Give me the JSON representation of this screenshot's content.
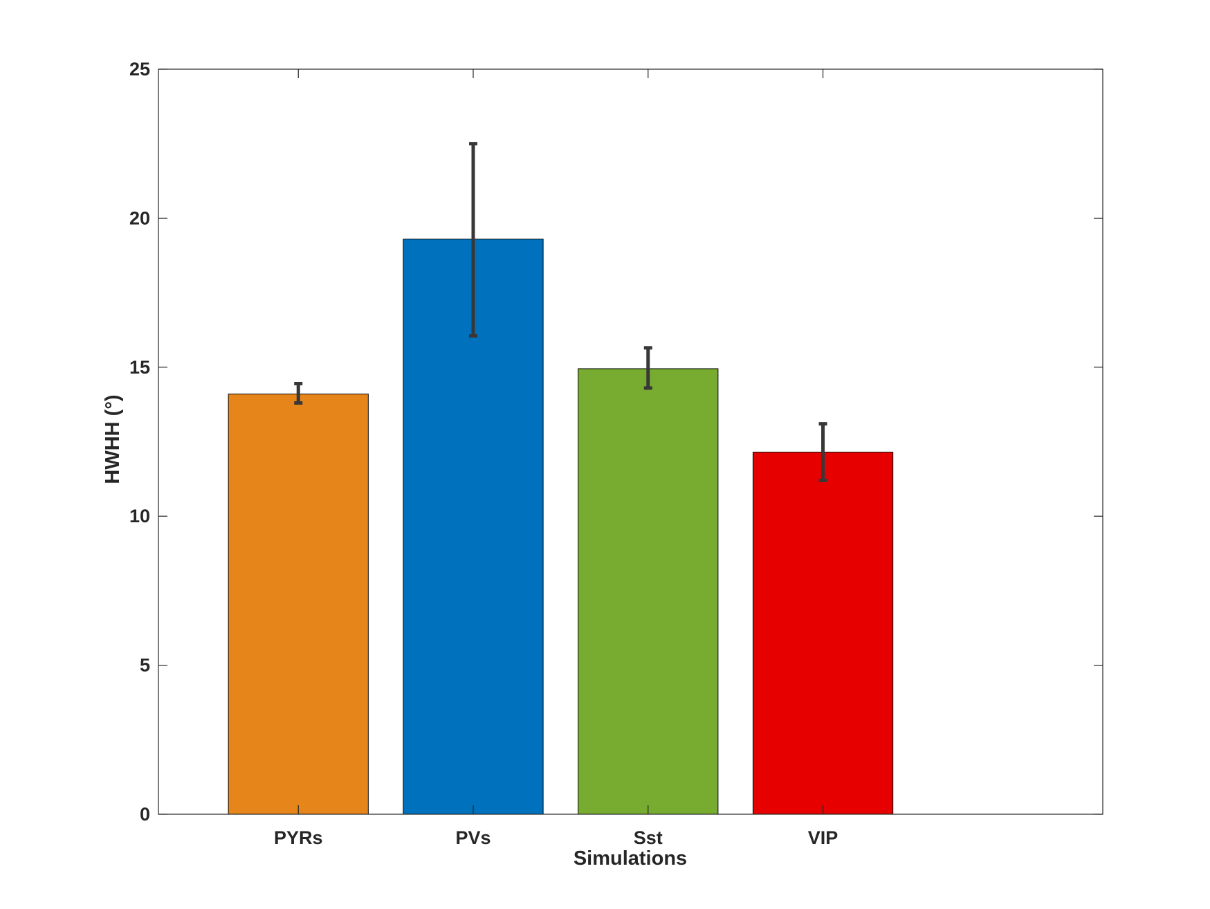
{
  "chart_data": {
    "type": "bar",
    "categories": [
      "PYRs",
      "PVs",
      "Sst",
      "VIP"
    ],
    "values": [
      14.1,
      19.3,
      14.95,
      12.15
    ],
    "error_low": [
      13.8,
      16.05,
      14.3,
      11.2
    ],
    "error_high": [
      14.45,
      22.5,
      15.65,
      13.1
    ],
    "bar_colors": [
      "#E6861A",
      "#0072BD",
      "#77AC30",
      "#E60000"
    ],
    "title": "",
    "xlabel": "Simulations",
    "ylabel": "HWHH (°)",
    "ylim": [
      0,
      25
    ],
    "xlim": [
      0.2,
      5.6
    ],
    "yticks": [
      0,
      5,
      10,
      15,
      20,
      25
    ],
    "grid": false,
    "legend": "none"
  }
}
